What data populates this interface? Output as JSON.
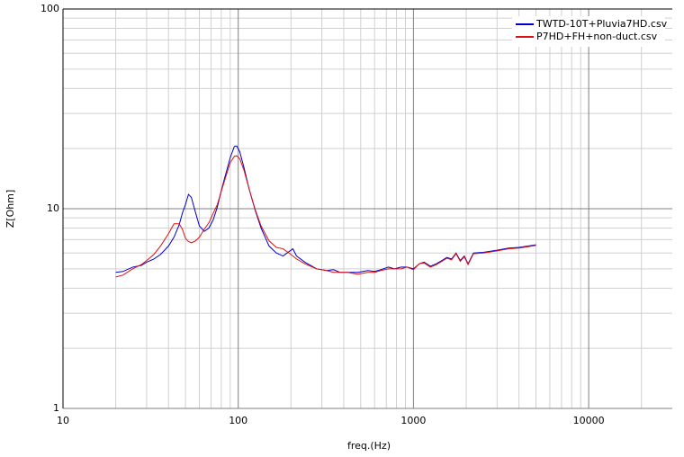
{
  "chart_data": {
    "type": "line",
    "xlabel": "freq.(Hz)",
    "ylabel": "Z[Ohm]",
    "xscale": "log",
    "yscale": "log",
    "xlim": [
      10,
      30000
    ],
    "ylim": [
      1,
      100
    ],
    "xticks": [
      10,
      100,
      1000,
      10000
    ],
    "yticks": [
      1,
      10,
      100
    ],
    "xminorticks": [
      20,
      30,
      40,
      50,
      60,
      70,
      80,
      90,
      200,
      300,
      400,
      500,
      600,
      700,
      800,
      900,
      2000,
      3000,
      4000,
      5000,
      6000,
      7000,
      8000,
      9000,
      20000
    ],
    "yminorticks": [
      2,
      3,
      4,
      5,
      6,
      7,
      8,
      9,
      20,
      30,
      40,
      50,
      60,
      70,
      80,
      90
    ],
    "grid": true,
    "legend": "upper right",
    "x": [
      20,
      22,
      25,
      28,
      30,
      33,
      36,
      40,
      43,
      46,
      48,
      50,
      52,
      54,
      57,
      60,
      64,
      68,
      72,
      76,
      80,
      85,
      90,
      95,
      98,
      102,
      108,
      115,
      125,
      135,
      150,
      165,
      180,
      195,
      205,
      215,
      240,
      280,
      320,
      350,
      380,
      420,
      480,
      550,
      600,
      650,
      720,
      780,
      850,
      920,
      1000,
      1080,
      1150,
      1250,
      1350,
      1450,
      1550,
      1650,
      1750,
      1850,
      1950,
      2050,
      2200,
      2500,
      3000,
      3500,
      4000,
      4500,
      5000
    ],
    "series": [
      {
        "name": "TWTD-10T+Pluvia7HD.csv",
        "color": "#0000cc",
        "values": [
          4.8,
          4.85,
          5.1,
          5.2,
          5.4,
          5.6,
          5.9,
          6.5,
          7.2,
          8.3,
          9.5,
          10.5,
          11.8,
          11.4,
          9.6,
          8.2,
          7.7,
          8.0,
          8.8,
          10.2,
          12.3,
          15,
          18,
          20.5,
          20.6,
          19.3,
          16,
          12.7,
          9.8,
          8.0,
          6.5,
          6.0,
          5.8,
          6.1,
          6.3,
          5.8,
          5.4,
          5.0,
          4.9,
          4.95,
          4.8,
          4.8,
          4.8,
          4.9,
          4.85,
          4.95,
          5.1,
          5.0,
          5.1,
          5.1,
          5.0,
          5.3,
          5.4,
          5.15,
          5.3,
          5.5,
          5.7,
          5.6,
          6.0,
          5.5,
          5.8,
          5.3,
          6.0,
          6.05,
          6.2,
          6.35,
          6.4,
          6.5,
          6.6
        ]
      },
      {
        "name": "P7HD+FH+non-duct.csv",
        "color": "#dd1111",
        "values": [
          4.55,
          4.65,
          5.0,
          5.25,
          5.5,
          5.9,
          6.5,
          7.5,
          8.4,
          8.4,
          7.9,
          7.1,
          6.85,
          6.75,
          6.9,
          7.2,
          7.9,
          8.5,
          9.5,
          10.5,
          12.2,
          14.5,
          17,
          18.3,
          18.4,
          17.8,
          15.5,
          12.7,
          9.9,
          8.2,
          6.9,
          6.4,
          6.3,
          6.0,
          5.8,
          5.6,
          5.3,
          5.0,
          4.9,
          4.8,
          4.8,
          4.8,
          4.7,
          4.8,
          4.8,
          4.9,
          5.0,
          5.0,
          5.0,
          5.1,
          4.95,
          5.3,
          5.35,
          5.1,
          5.25,
          5.45,
          5.65,
          5.55,
          5.95,
          5.45,
          5.75,
          5.25,
          5.95,
          6.0,
          6.15,
          6.3,
          6.35,
          6.45,
          6.55
        ]
      }
    ]
  }
}
